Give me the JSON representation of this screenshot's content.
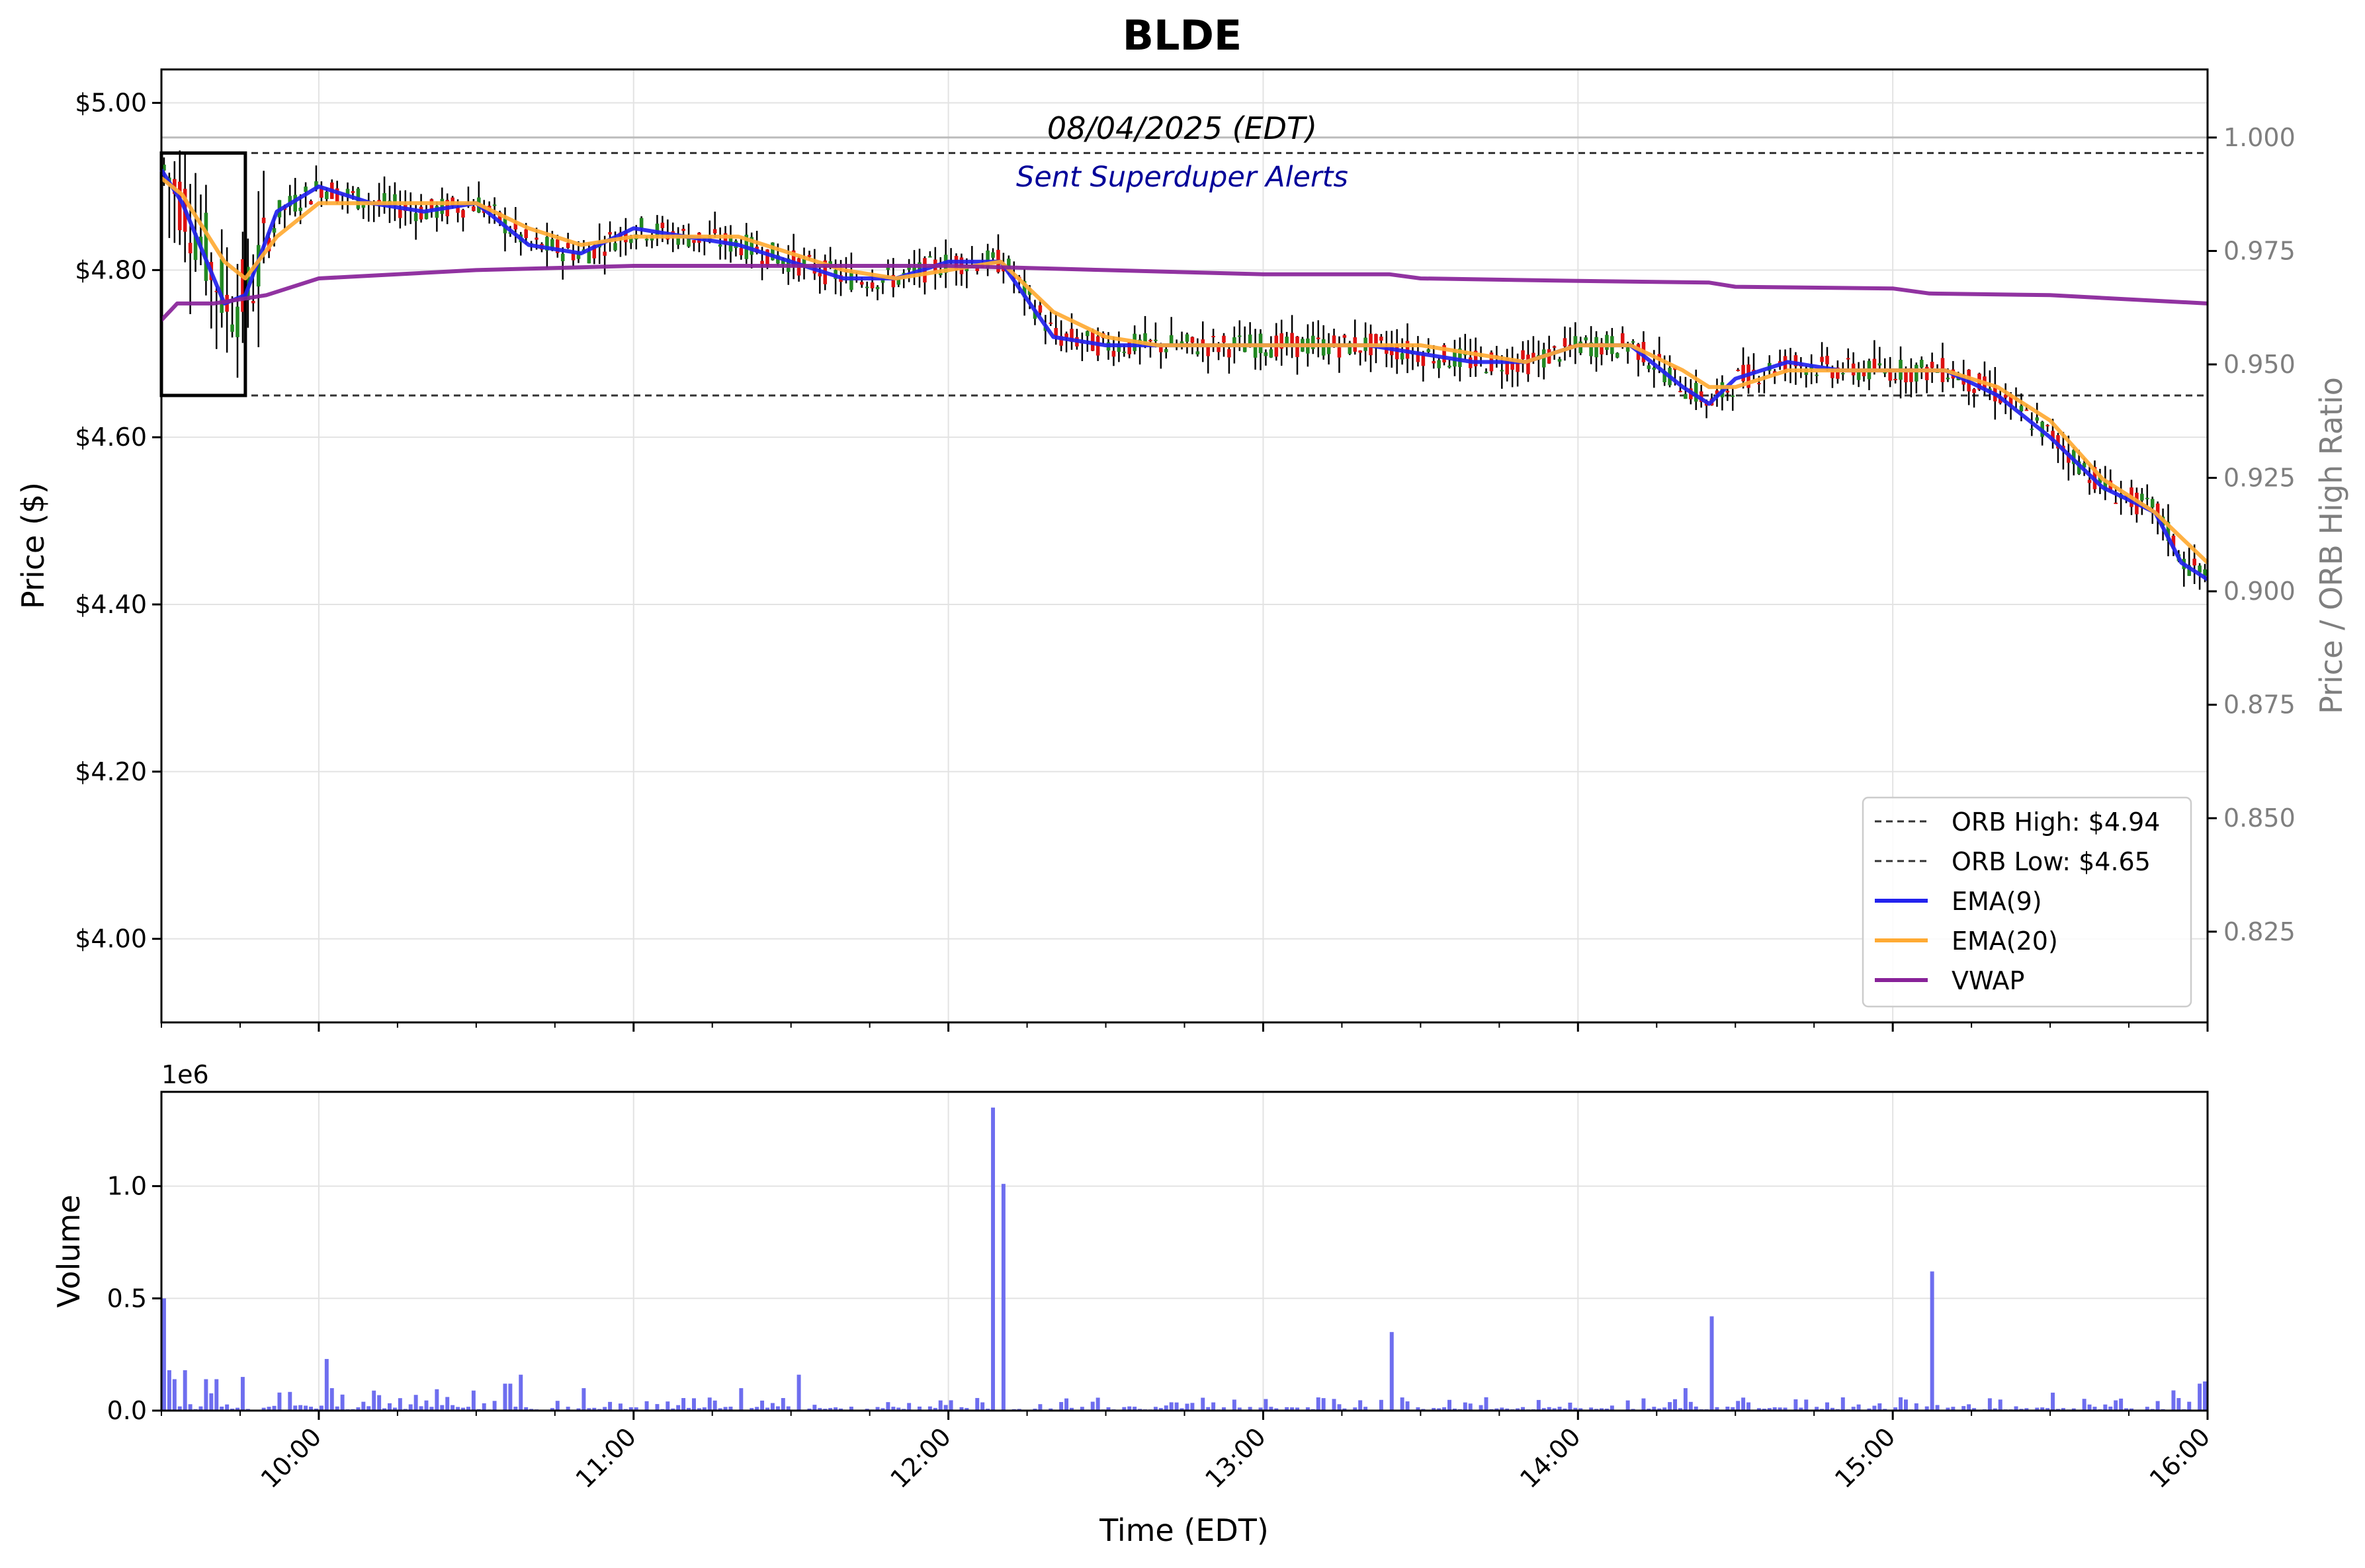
{
  "title": "BLDE",
  "date_label": "08/04/2025 (EDT)",
  "alert_label": "Sent Superduper Alerts",
  "colors": {
    "ema9": "#2222ee",
    "ema20": "#ffaa33",
    "vwap": "#882299",
    "up": "#228822",
    "down": "#dd1111",
    "volume": "#6666ee",
    "alert": "#000099",
    "secondary_axis": "#7f7f7f"
  },
  "chart_data": [
    {
      "type": "line",
      "panel": "price",
      "ylabel": "Price ($)",
      "y2label": "Price / ORB High Ratio",
      "ylim": [
        3.9,
        5.04
      ],
      "y2lim": [
        0.805,
        1.015
      ],
      "x_range": [
        "09:30",
        "16:00"
      ],
      "y_ticks": [
        "$4.00",
        "$4.20",
        "$4.40",
        "$4.60",
        "$4.80",
        "$5.00"
      ],
      "y2_ticks": [
        "0.825",
        "0.850",
        "0.875",
        "0.900",
        "0.925",
        "0.950",
        "0.975",
        "1.000"
      ],
      "grid": true,
      "legend_position": "lower-right",
      "legend": [
        "ORB High: $4.94",
        "ORB Low: $4.65",
        "EMA(9)",
        "EMA(20)",
        "VWAP"
      ],
      "orb_high": 4.94,
      "orb_low": 4.65,
      "orb_box": {
        "start": "09:30",
        "end": "09:46",
        "high": 4.94,
        "low": 4.65
      },
      "ratio_reference_line": 1.0,
      "series": [
        {
          "name": "EMA(9)",
          "x": [
            "09:30",
            "09:34",
            "09:38",
            "09:42",
            "09:46",
            "09:52",
            "10:00",
            "10:10",
            "10:20",
            "10:30",
            "10:40",
            "10:50",
            "11:00",
            "11:10",
            "11:20",
            "11:30",
            "11:40",
            "11:50",
            "12:00",
            "12:10",
            "12:20",
            "12:30",
            "12:40",
            "12:50",
            "13:00",
            "13:10",
            "13:20",
            "13:30",
            "13:40",
            "13:50",
            "14:00",
            "14:10",
            "14:20",
            "14:25",
            "14:30",
            "14:40",
            "14:50",
            "15:00",
            "15:10",
            "15:20",
            "15:30",
            "15:40",
            "15:50",
            "15:55",
            "16:00"
          ],
          "y": [
            4.92,
            4.88,
            4.82,
            4.76,
            4.77,
            4.87,
            4.9,
            4.88,
            4.87,
            4.88,
            4.83,
            4.82,
            4.85,
            4.84,
            4.83,
            4.81,
            4.79,
            4.79,
            4.81,
            4.81,
            4.72,
            4.71,
            4.71,
            4.71,
            4.71,
            4.71,
            4.71,
            4.7,
            4.69,
            4.69,
            4.71,
            4.71,
            4.66,
            4.64,
            4.67,
            4.69,
            4.68,
            4.68,
            4.68,
            4.65,
            4.6,
            4.54,
            4.51,
            4.45,
            4.43
          ]
        },
        {
          "name": "EMA(20)",
          "x": [
            "09:30",
            "09:34",
            "09:38",
            "09:42",
            "09:46",
            "09:52",
            "10:00",
            "10:10",
            "10:20",
            "10:30",
            "10:40",
            "10:50",
            "11:00",
            "11:10",
            "11:20",
            "11:30",
            "11:40",
            "11:50",
            "12:00",
            "12:10",
            "12:20",
            "12:30",
            "12:40",
            "12:50",
            "13:00",
            "13:10",
            "13:20",
            "13:30",
            "13:40",
            "13:50",
            "14:00",
            "14:10",
            "14:20",
            "14:25",
            "14:30",
            "14:40",
            "14:50",
            "15:00",
            "15:10",
            "15:20",
            "15:30",
            "15:40",
            "15:50",
            "15:55",
            "16:00"
          ],
          "y": [
            4.91,
            4.89,
            4.85,
            4.81,
            4.79,
            4.84,
            4.88,
            4.88,
            4.88,
            4.88,
            4.85,
            4.83,
            4.84,
            4.84,
            4.84,
            4.82,
            4.8,
            4.79,
            4.8,
            4.81,
            4.75,
            4.72,
            4.71,
            4.71,
            4.71,
            4.71,
            4.71,
            4.71,
            4.7,
            4.69,
            4.71,
            4.71,
            4.68,
            4.66,
            4.66,
            4.68,
            4.68,
            4.68,
            4.68,
            4.66,
            4.62,
            4.55,
            4.51,
            4.48,
            4.45
          ]
        },
        {
          "name": "VWAP",
          "x": [
            "09:30",
            "09:33",
            "09:40",
            "09:50",
            "10:00",
            "10:30",
            "11:00",
            "11:30",
            "12:00",
            "12:30",
            "13:00",
            "13:30",
            "13:24",
            "14:00",
            "14:25",
            "14:30",
            "15:00",
            "15:07",
            "15:30",
            "16:00"
          ],
          "y": [
            4.74,
            4.76,
            4.76,
            4.77,
            4.79,
            4.8,
            4.805,
            4.805,
            4.805,
            4.8,
            4.795,
            4.79,
            4.795,
            4.787,
            4.785,
            4.78,
            4.778,
            4.772,
            4.77,
            4.76
          ]
        }
      ]
    },
    {
      "type": "bar",
      "panel": "volume",
      "ylabel": "Volume",
      "xlabel": "Time (EDT)",
      "y_scale_label": "1e6",
      "ylim": [
        0,
        1.42
      ],
      "y_ticks": [
        "0.0",
        "0.5",
        "1.0"
      ],
      "x_ticks": [
        "10:00",
        "11:00",
        "12:00",
        "13:00",
        "14:00",
        "15:00",
        "16:00"
      ],
      "grid": true,
      "bars": [
        {
          "time": "09:30",
          "value": 0.5
        },
        {
          "time": "09:31",
          "value": 0.18
        },
        {
          "time": "09:32",
          "value": 0.14
        },
        {
          "time": "09:34",
          "value": 0.18
        },
        {
          "time": "09:38",
          "value": 0.14
        },
        {
          "time": "09:40",
          "value": 0.14
        },
        {
          "time": "09:45",
          "value": 0.15
        },
        {
          "time": "10:01",
          "value": 0.23
        },
        {
          "time": "10:02",
          "value": 0.1
        },
        {
          "time": "10:18",
          "value": 0.07
        },
        {
          "time": "10:35",
          "value": 0.12
        },
        {
          "time": "10:36",
          "value": 0.12
        },
        {
          "time": "10:38",
          "value": 0.16
        },
        {
          "time": "10:50",
          "value": 0.1
        },
        {
          "time": "11:20",
          "value": 0.1
        },
        {
          "time": "11:31",
          "value": 0.16
        },
        {
          "time": "12:08",
          "value": 1.35
        },
        {
          "time": "12:10",
          "value": 1.01
        },
        {
          "time": "13:24",
          "value": 0.35
        },
        {
          "time": "14:20",
          "value": 0.1
        },
        {
          "time": "14:25",
          "value": 0.42
        },
        {
          "time": "15:07",
          "value": 0.62
        },
        {
          "time": "15:30",
          "value": 0.08
        },
        {
          "time": "15:53",
          "value": 0.09
        },
        {
          "time": "15:58",
          "value": 0.12
        },
        {
          "time": "15:59",
          "value": 0.13
        }
      ],
      "baseline_volume_range": [
        0.0,
        0.06
      ]
    }
  ]
}
